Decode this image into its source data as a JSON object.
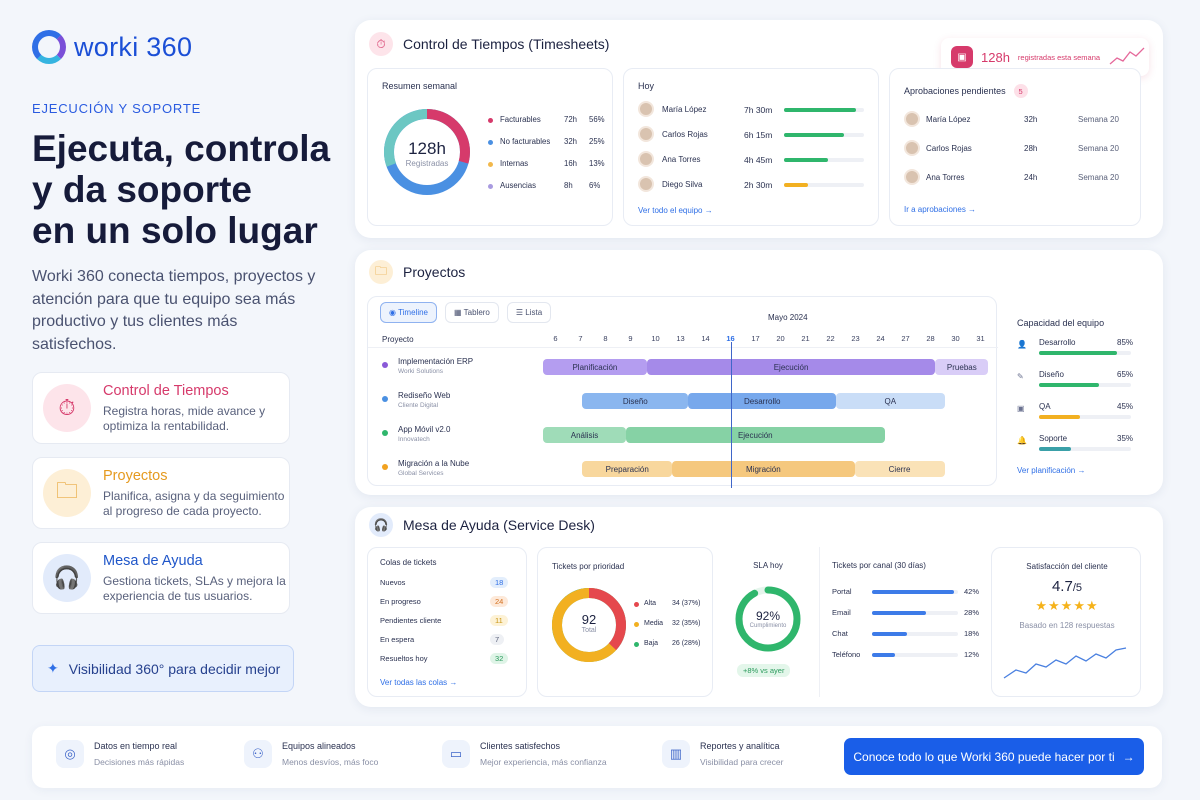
{
  "brand": {
    "name": "worki 360"
  },
  "hero": {
    "eyebrow": "EJECUCIÓN Y SOPORTE",
    "l1": "Ejecuta, controla",
    "l2": "y da soporte",
    "l3": "en un solo lugar",
    "lead": "Worki 360 conecta tiempos, proyectos y atención para que tu equipo sea más productivo y tus clientes más satisfechos."
  },
  "features": [
    {
      "title": "Control de Tiempos",
      "desc": "Registra horas, mide avance y optimiza la rentabilidad.",
      "color": "#d63a6b",
      "icon": "stopwatch-icon"
    },
    {
      "title": "Proyectos",
      "desc": "Planifica, asigna y da seguimiento al progreso de cada proyecto.",
      "color": "#e59a1f",
      "icon": "folder-icon"
    },
    {
      "title": "Mesa de Ayuda",
      "desc": "Gestiona tickets, SLAs y mejora la experiencia de tus usuarios.",
      "color": "#1f56c9",
      "icon": "headset-icon"
    }
  ],
  "visibility": "Visibilidad 360° para decidir mejor",
  "timesheets": {
    "title": "Control de Tiempos (Timesheets)",
    "badge": {
      "value": "128h",
      "label": "registradas esta semana"
    },
    "summary": {
      "title": "Resumen semanal",
      "total": "128h",
      "total_label": "Registradas",
      "rows": [
        {
          "label": "Facturables",
          "hours": "72h",
          "pct": "56%",
          "color": "#d63a6b"
        },
        {
          "label": "No facturables",
          "hours": "32h",
          "pct": "25%",
          "color": "#4a90e2"
        },
        {
          "label": "Internas",
          "hours": "16h",
          "pct": "13%",
          "color": "#f2b84b"
        },
        {
          "label": "Ausencias",
          "hours": "8h",
          "pct": "6%",
          "color": "#a99be0"
        }
      ]
    },
    "today": {
      "title": "Hoy",
      "rows": [
        {
          "name": "María López",
          "time": "7h 30m",
          "fill": 0.9,
          "color": "#2fb66c"
        },
        {
          "name": "Carlos Rojas",
          "time": "6h 15m",
          "fill": 0.75,
          "color": "#2fb66c"
        },
        {
          "name": "Ana Torres",
          "time": "4h 45m",
          "fill": 0.55,
          "color": "#2fb66c"
        },
        {
          "name": "Diego Silva",
          "time": "2h 30m",
          "fill": 0.3,
          "color": "#f2b021"
        }
      ],
      "link": "Ver todo el equipo"
    },
    "approvals": {
      "title": "Aprobaciones pendientes",
      "count": "5",
      "rows": [
        {
          "name": "María López",
          "hours": "32h",
          "week": "Semana 20"
        },
        {
          "name": "Carlos Rojas",
          "hours": "28h",
          "week": "Semana 20"
        },
        {
          "name": "Ana Torres",
          "hours": "24h",
          "week": "Semana 20"
        }
      ],
      "link": "Ir a aprobaciones"
    }
  },
  "projects": {
    "title": "Proyectos",
    "views": [
      "Timeline",
      "Tablero",
      "Lista"
    ],
    "month": "Mayo 2024",
    "col": "Proyecto",
    "days": [
      "6",
      "7",
      "8",
      "9",
      "10",
      "13",
      "14",
      "16",
      "17",
      "20",
      "21",
      "22",
      "23",
      "24",
      "27",
      "28",
      "30",
      "31"
    ],
    "today_day": "16",
    "rows": [
      {
        "name": "Implementación ERP",
        "client": "Worki Solutions",
        "color": "#8a5ad8",
        "tasks": [
          {
            "label": "Planificación",
            "start": 0,
            "end": 4.5,
            "bg": "#b49df0"
          },
          {
            "label": "Ejecución",
            "start": 4.5,
            "end": 17,
            "bg": "#a58ae9"
          },
          {
            "label": "Pruebas",
            "start": 17,
            "end": 19.3,
            "bg": "#d9cdf7"
          }
        ]
      },
      {
        "name": "Rediseño Web",
        "client": "Cliente Digital",
        "color": "#4a90e2",
        "tasks": [
          {
            "label": "Diseño",
            "start": 1.7,
            "end": 6.3,
            "bg": "#8ab6ef"
          },
          {
            "label": "Desarrollo",
            "start": 6.3,
            "end": 12.7,
            "bg": "#77a8ec"
          },
          {
            "label": "QA",
            "start": 12.7,
            "end": 17.4,
            "bg": "#c9ddf7"
          }
        ]
      },
      {
        "name": "App Móvil v2.0",
        "client": "Innovatech",
        "color": "#2fb66c",
        "tasks": [
          {
            "label": "Análisis",
            "start": 0,
            "end": 3.6,
            "bg": "#9fdcb8"
          },
          {
            "label": "Ejecución",
            "start": 3.6,
            "end": 14.8,
            "bg": "#86d2a5"
          }
        ]
      },
      {
        "name": "Migración a la Nube",
        "client": "Global Services",
        "color": "#f2a21f",
        "tasks": [
          {
            "label": "Preparación",
            "start": 1.7,
            "end": 5.6,
            "bg": "#f8d79d"
          },
          {
            "label": "Migración",
            "start": 5.6,
            "end": 13.5,
            "bg": "#f5c87e"
          },
          {
            "label": "Cierre",
            "start": 13.5,
            "end": 17.4,
            "bg": "#fae2b7"
          }
        ]
      }
    ],
    "capacity": {
      "title": "Capacidad del equipo",
      "rows": [
        {
          "label": "Desarrollo",
          "pct": "85%",
          "fill": 0.85,
          "color": "#2fb66c",
          "icon": "user-icon"
        },
        {
          "label": "Diseño",
          "pct": "65%",
          "fill": 0.65,
          "color": "#2fb66c",
          "icon": "brush-icon"
        },
        {
          "label": "QA",
          "pct": "45%",
          "fill": 0.45,
          "color": "#f2b021",
          "icon": "checklist-icon"
        },
        {
          "label": "Soporte",
          "pct": "35%",
          "fill": 0.35,
          "color": "#3aa0a8",
          "icon": "bell-icon"
        }
      ],
      "link": "Ver planificación"
    }
  },
  "desk": {
    "title": "Mesa de Ayuda (Service Desk)",
    "queues": {
      "title": "Colas de tickets",
      "rows": [
        {
          "label": "Nuevos",
          "count": "18",
          "bg": "#e3eefc",
          "fg": "#2f6fe6"
        },
        {
          "label": "En progreso",
          "count": "24",
          "bg": "#fde9d9",
          "fg": "#d4701e"
        },
        {
          "label": "Pendientes cliente",
          "count": "11",
          "bg": "#fdf2d6",
          "fg": "#c99512"
        },
        {
          "label": "En espera",
          "count": "7",
          "bg": "#eef0f4",
          "fg": "#596079"
        },
        {
          "label": "Resueltos hoy",
          "count": "32",
          "bg": "#dff4e7",
          "fg": "#2a9a5c"
        }
      ],
      "link": "Ver todas las colas"
    },
    "priority": {
      "title": "Tickets por prioridad",
      "total": "92",
      "total_label": "Total",
      "rows": [
        {
          "label": "Alta",
          "value": "34 (37%)",
          "color": "#e5484d"
        },
        {
          "label": "Media",
          "value": "32 (35%)",
          "color": "#f2b021"
        },
        {
          "label": "Baja",
          "value": "26 (28%)",
          "color": "#2fb66c"
        }
      ]
    },
    "sla": {
      "title": "SLA hoy",
      "value": "92%",
      "label": "Cumplimiento",
      "delta": "+8% vs ayer"
    },
    "channels": {
      "title": "Tickets por canal (30 días)",
      "rows": [
        {
          "label": "Portal",
          "pct": "42%",
          "fill": 0.42
        },
        {
          "label": "Email",
          "pct": "28%",
          "fill": 0.28
        },
        {
          "label": "Chat",
          "pct": "18%",
          "fill": 0.18
        },
        {
          "label": "Teléfono",
          "pct": "12%",
          "fill": 0.12
        }
      ]
    },
    "satisfaction": {
      "title": "Satisfacción del cliente",
      "score": "4.7",
      "scale": "/5",
      "stars": "★★★★★",
      "note": "Basado en 128 respuestas"
    }
  },
  "bottom": {
    "items": [
      {
        "title": "Datos en tiempo real",
        "desc": "Decisiones más rápidas",
        "icon": "target-icon"
      },
      {
        "title": "Equipos alineados",
        "desc": "Menos desvíos, más foco",
        "icon": "team-icon"
      },
      {
        "title": "Clientes satisfechos",
        "desc": "Mejor experiencia, más confianza",
        "icon": "chat-icon"
      },
      {
        "title": "Reportes y analítica",
        "desc": "Visibilidad para crecer",
        "icon": "analytics-icon"
      }
    ],
    "cta": "Conoce todo lo que Worki 360 puede hacer por ti"
  }
}
